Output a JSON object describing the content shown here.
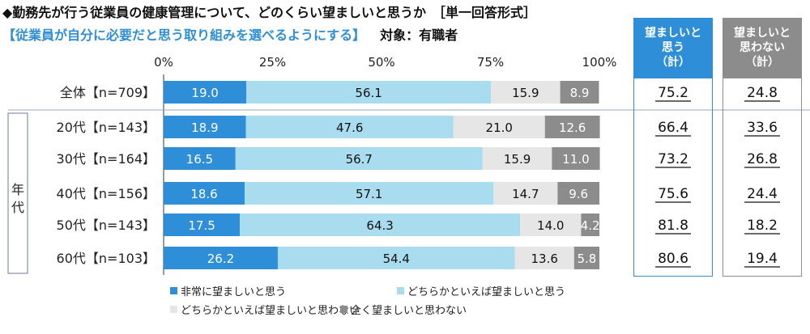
{
  "header": {
    "title": "◆勤務先が行う従業員の健康管理について、どのくらい望ましいと思うか　［単一回答形式］",
    "subtitle": "【従業員が自分に必要だと思う取り組みを選べるようにする】",
    "target": "対象：有職者"
  },
  "colors": {
    "s1": "#2e8fd8",
    "s2": "#a9dcef",
    "s3": "#e6e6e6",
    "s4": "#8c8c8c",
    "col1_head": "#2e8fd8",
    "col2_head": "#8c8c8c"
  },
  "side_label": "年代",
  "summary_columns": [
    {
      "label": "望ましいと\n思う\n（計）",
      "values": [
        "75.2",
        "66.4",
        "73.2",
        "75.6",
        "81.8",
        "80.6"
      ]
    },
    {
      "label": "望ましいと\n思わない\n（計）",
      "values": [
        "24.8",
        "33.6",
        "26.8",
        "24.4",
        "18.2",
        "19.4"
      ]
    }
  ],
  "chart_data": {
    "type": "bar",
    "orientation": "horizontal",
    "stacked": true,
    "x_ticks": [
      "0%",
      "25%",
      "50%",
      "75%",
      "100%"
    ],
    "xlim": [
      0,
      100
    ],
    "categories": [
      "全体【n=709】",
      "20代【n=143】",
      "30代【n=164】",
      "40代【n=156】",
      "50代【n=143】",
      "60代【n=103】"
    ],
    "series": [
      {
        "name": "非常に望ましいと思う",
        "values": [
          19.0,
          18.9,
          16.5,
          18.6,
          17.5,
          26.2
        ]
      },
      {
        "name": "どちらかといえば望ましいと思う",
        "values": [
          56.1,
          47.6,
          56.7,
          57.1,
          64.3,
          54.4
        ]
      },
      {
        "name": "どちらかといえば望ましいと思わない",
        "values": [
          15.9,
          21.0,
          15.9,
          14.7,
          14.0,
          13.6
        ]
      },
      {
        "name": "全く望ましいと思わない",
        "values": [
          8.9,
          12.6,
          11.0,
          9.6,
          4.2,
          5.8
        ]
      }
    ],
    "legend_position": "bottom"
  }
}
